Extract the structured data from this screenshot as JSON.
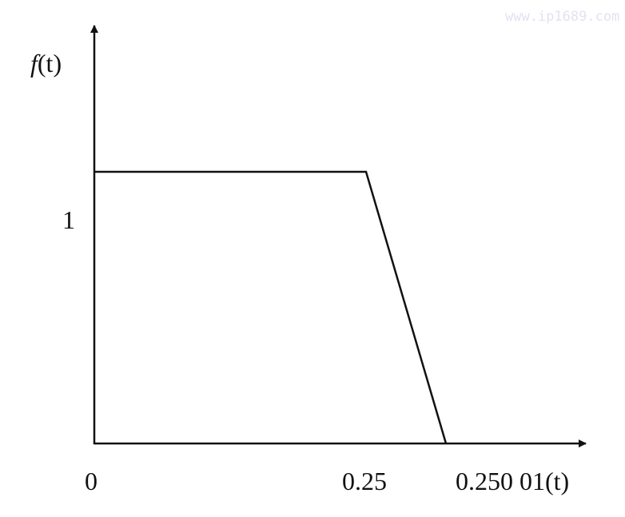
{
  "watermark": "www.ip1689.com",
  "chart_data": {
    "type": "line",
    "ylabel_italic": "f",
    "ylabel_rest": "(t)",
    "x_tick_labels": [
      "0",
      "0.25",
      "0.250 01(t)"
    ],
    "x_ticks": [
      0,
      0.25,
      0.25001
    ],
    "y_tick_labels": [
      "1"
    ],
    "points": [
      [
        0,
        1
      ],
      [
        0.25,
        1
      ],
      [
        0.25001,
        0
      ]
    ],
    "grid": false,
    "line_color": "#111111"
  }
}
